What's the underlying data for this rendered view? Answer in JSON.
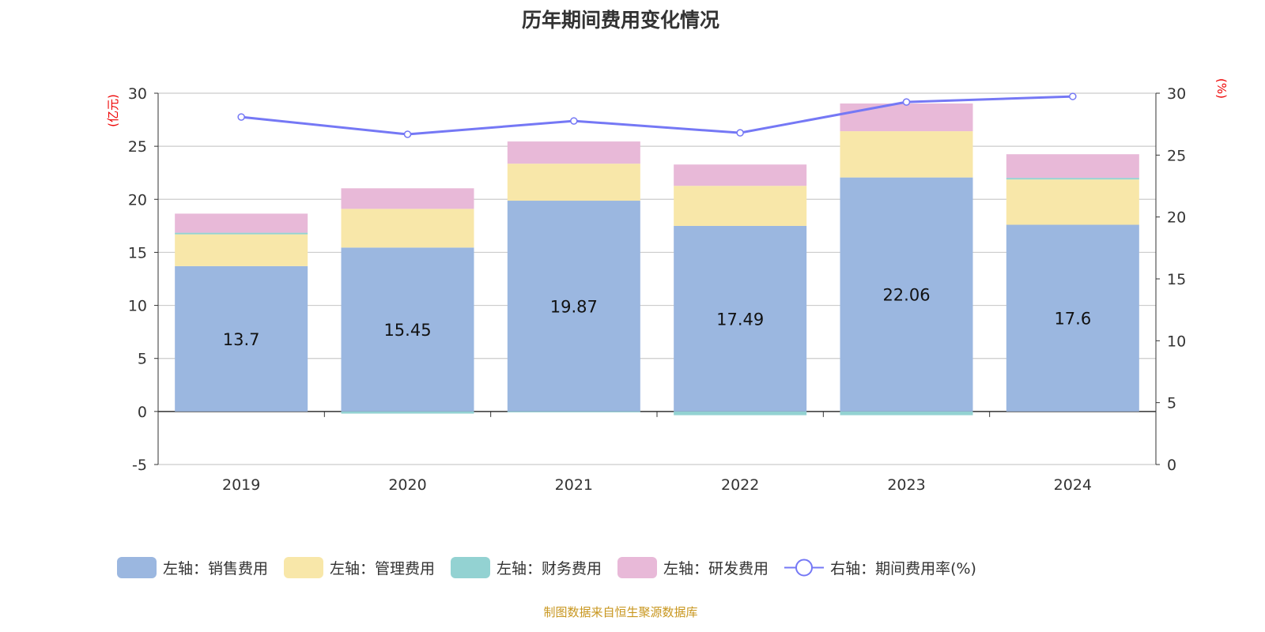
{
  "chart_data": {
    "type": "bar",
    "title": "历年期间费用变化情况",
    "categories": [
      "2019",
      "2020",
      "2021",
      "2022",
      "2023",
      "2024"
    ],
    "ylabel_left": "(亿元)",
    "ylabel_right": "(%)",
    "ylim_left": [
      -5,
      30
    ],
    "ylim_right": [
      0,
      30
    ],
    "yticks_left": [
      -5,
      0,
      5,
      10,
      15,
      20,
      25,
      30
    ],
    "yticks_right": [
      0,
      5,
      10,
      15,
      20,
      25,
      30
    ],
    "grid": true,
    "legend_position": "bottom",
    "series": [
      {
        "name": "左轴：销售费用",
        "type": "bar",
        "axis": "left",
        "color": "#9bb7e0",
        "values": [
          13.7,
          15.45,
          19.87,
          17.49,
          22.06,
          17.6
        ],
        "labels": [
          "13.7",
          "15.45",
          "19.87",
          "17.49",
          "22.06",
          "17.6"
        ]
      },
      {
        "name": "左轴：管理费用",
        "type": "bar",
        "axis": "left",
        "color": "#f8e7a9",
        "values": [
          3.0,
          3.65,
          3.49,
          3.78,
          4.36,
          4.27
        ]
      },
      {
        "name": "左轴：财务费用",
        "type": "bar",
        "axis": "left",
        "color": "#93d2d2",
        "values": [
          0.15,
          -0.2,
          -0.05,
          -0.35,
          -0.35,
          0.15
        ]
      },
      {
        "name": "左轴：研发费用",
        "type": "bar",
        "axis": "left",
        "color": "#e8b9d8",
        "values": [
          1.8,
          1.94,
          2.09,
          2.01,
          2.61,
          2.23
        ]
      },
      {
        "name": "右轴：期间费用率(%)",
        "type": "line",
        "axis": "right",
        "color": "#7578f5",
        "values": [
          28.08,
          26.68,
          27.76,
          26.8,
          29.29,
          29.74
        ]
      }
    ]
  },
  "source": "制图数据来自恒生聚源数据库"
}
